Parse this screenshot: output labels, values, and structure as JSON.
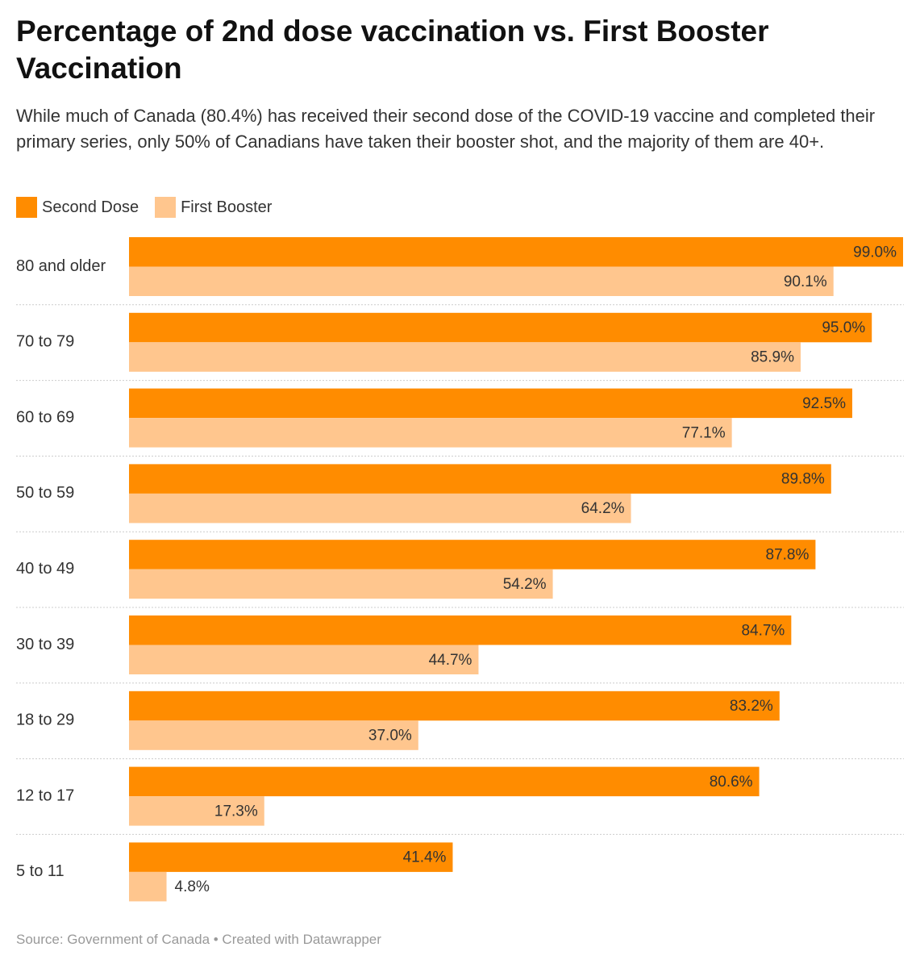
{
  "title": "Percentage of 2nd dose vaccination vs. First Booster Vaccination",
  "subtitle": "While much of Canada (80.4%) has received their second dose of the COVID-19 vaccine and completed their primary series, only 50% of Canadians have taken their booster shot, and the majority of them are 40+.",
  "legend": {
    "second_dose": "Second Dose",
    "first_booster": "First Booster"
  },
  "colors": {
    "second_dose": "#ff8c00",
    "first_booster": "#ffc68e"
  },
  "source": "Source: Government of Canada • Created with Datawrapper",
  "chart_data": {
    "type": "bar",
    "orientation": "horizontal",
    "categories": [
      "80 and older",
      "70 to 79",
      "60 to 69",
      "50 to 59",
      "40 to 49",
      "30 to 39",
      "18 to 29",
      "12 to 17",
      "5 to 11"
    ],
    "series": [
      {
        "name": "Second Dose",
        "values": [
          99.0,
          95.0,
          92.5,
          89.8,
          87.8,
          84.7,
          83.2,
          80.6,
          41.4
        ]
      },
      {
        "name": "First Booster",
        "values": [
          90.1,
          85.9,
          77.1,
          64.2,
          54.2,
          44.7,
          37.0,
          17.3,
          4.8
        ]
      }
    ],
    "value_labels": [
      [
        "99.0%",
        "95.0%",
        "92.5%",
        "89.8%",
        "87.8%",
        "84.7%",
        "83.2%",
        "80.6%",
        "41.4%"
      ],
      [
        "90.1%",
        "85.9%",
        "77.1%",
        "64.2%",
        "54.2%",
        "44.7%",
        "37.0%",
        "17.3%",
        "4.8%"
      ]
    ],
    "xlim": [
      0,
      99
    ],
    "grid": false,
    "legend_position": "top-left"
  }
}
